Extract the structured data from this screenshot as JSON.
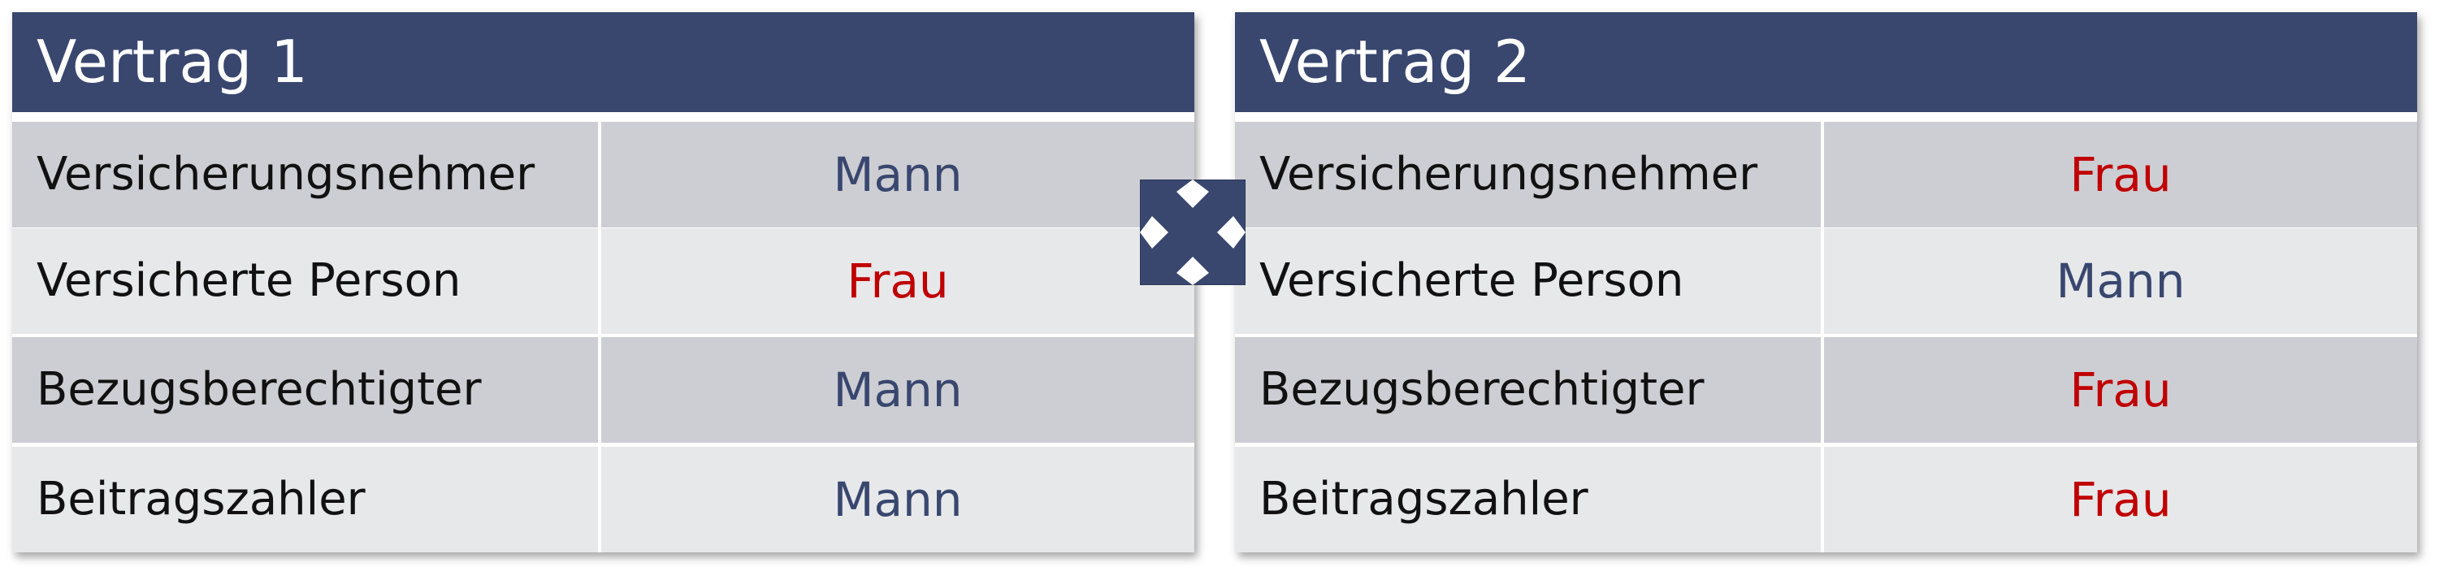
{
  "colors": {
    "header": "#39476f",
    "mann": "#39476f",
    "frau": "#c00000",
    "row_dark": "#cdced3",
    "row_light": "#e7e8ea"
  },
  "contracts": [
    {
      "title": "Vertrag 1",
      "rows": [
        {
          "label": "Versicherungsnehmer",
          "value": "Mann"
        },
        {
          "label": "Versicherte Person",
          "value": "Frau"
        },
        {
          "label": "Bezugsberechtigter",
          "value": "Mann"
        },
        {
          "label": "Beitragszahler",
          "value": "Mann"
        }
      ]
    },
    {
      "title": "Vertrag 2",
      "rows": [
        {
          "label": "Versicherungsnehmer",
          "value": "Frau"
        },
        {
          "label": "Versicherte Person",
          "value": "Mann"
        },
        {
          "label": "Bezugsberechtigter",
          "value": "Frau"
        },
        {
          "label": "Beitragszahler",
          "value": "Frau"
        }
      ]
    }
  ],
  "center_icon": "swap-arrows-icon"
}
